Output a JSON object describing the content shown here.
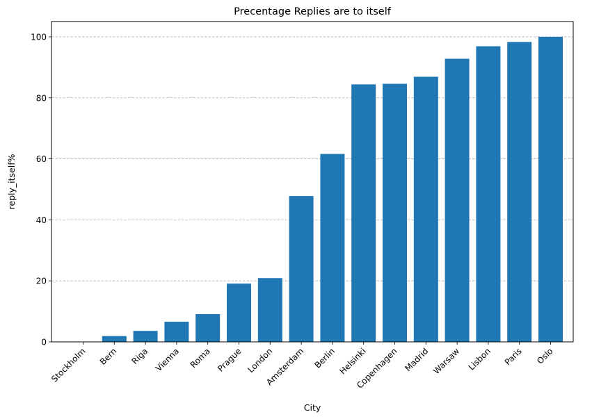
{
  "chart_data": {
    "type": "bar",
    "title": "Precentage Replies are to itself",
    "xlabel": "City",
    "ylabel": "reply_itself%",
    "categories": [
      "Stockholm",
      "Bern",
      "Riga",
      "Vienna",
      "Roma",
      "Prague",
      "London",
      "Amsterdam",
      "Berlin",
      "Helsinki",
      "Copenhagen",
      "Madrid",
      "Warsaw",
      "Lisbon",
      "Paris",
      "Oslo"
    ],
    "values": [
      0,
      1.9,
      3.6,
      6.6,
      9.1,
      19.1,
      20.9,
      47.8,
      61.6,
      84.4,
      84.6,
      86.9,
      92.8,
      96.9,
      98.3,
      100.0
    ],
    "ylim": [
      0,
      105
    ],
    "yticks": [
      0,
      20,
      40,
      60,
      80,
      100
    ],
    "grid": "y-axis dashed",
    "bar_color": "#1f77b4",
    "xtick_rotation": 45
  }
}
